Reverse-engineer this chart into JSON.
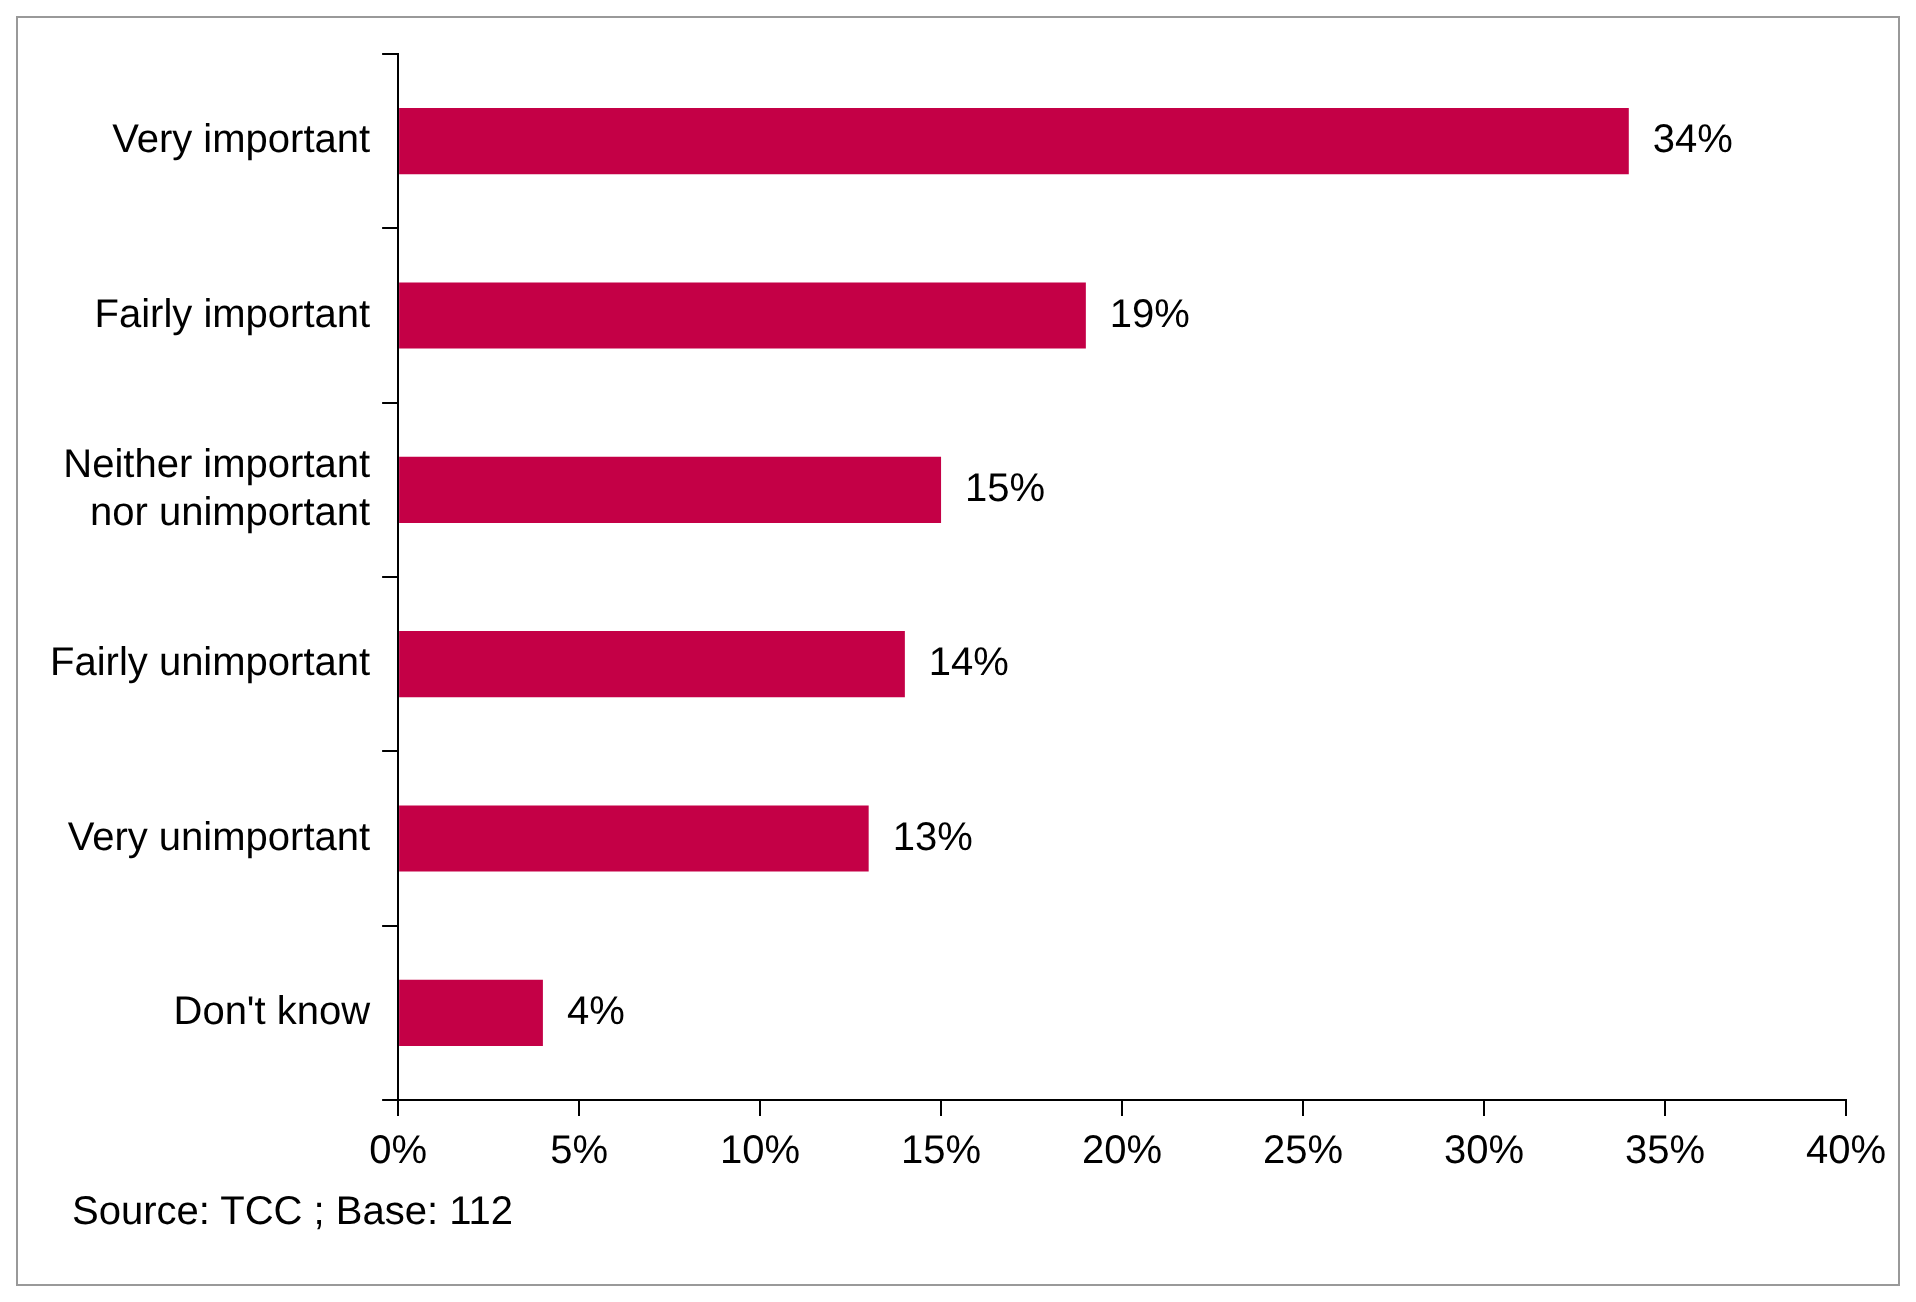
{
  "chart_data": {
    "type": "bar",
    "orientation": "horizontal",
    "categories": [
      "Very important",
      "Fairly important",
      "Neither important nor unimportant",
      "Fairly unimportant",
      "Very unimportant",
      "Don't know"
    ],
    "values": [
      34,
      19,
      15,
      14,
      13,
      4
    ],
    "color": "#c40046",
    "xlim": [
      0,
      40
    ],
    "xticks": [
      {
        "value": 0,
        "label": "0%"
      },
      {
        "value": 5,
        "label": "5%"
      },
      {
        "value": 10,
        "label": "10%"
      },
      {
        "value": 15,
        "label": "15%"
      },
      {
        "value": 20,
        "label": "20%"
      },
      {
        "value": 25,
        "label": "25%"
      },
      {
        "value": 30,
        "label": "30%"
      },
      {
        "value": 35,
        "label": "35%"
      },
      {
        "value": 40,
        "label": "40%"
      }
    ],
    "value_labels": [
      "34%",
      "19%",
      "15%",
      "14%",
      "13%",
      "4%"
    ],
    "grid": false,
    "legend": false,
    "annotations": [
      "Source: TCC ; Base: 112"
    ]
  }
}
